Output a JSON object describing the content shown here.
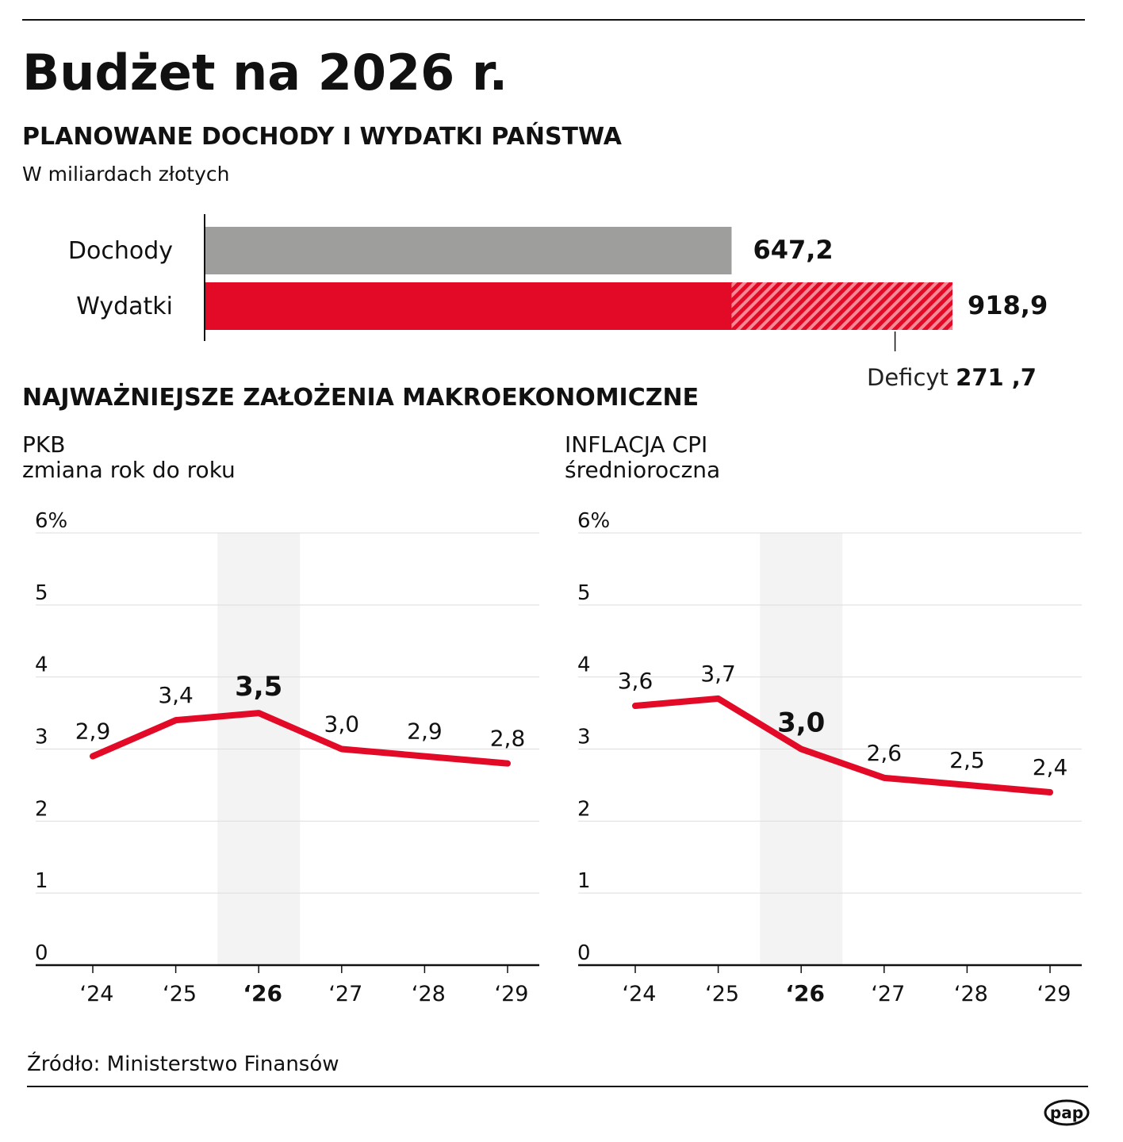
{
  "title": "Budżet na 2026 r.",
  "budget": {
    "heading": "PLANOWANE DOCHODY I WYDATKI PAŃSTWA",
    "unit": "W miliardach złotych",
    "deficit_label": "Deficyt",
    "deficit_value": "271 ,7"
  },
  "macro_heading": "NAJWAŻNIEJSZE ZAŁOŻENIA MAKROEKONOMICZNE",
  "source": "Źródło: Ministerstwo Finansów",
  "logo": "pap",
  "colors": {
    "red": "#e30a27",
    "gray": "#9e9e9d",
    "highlight": "#f3f3f3"
  },
  "chart_data": [
    {
      "type": "bar",
      "orientation": "horizontal",
      "categories": [
        "Dochody",
        "Wydatki"
      ],
      "values": [
        647.2,
        918.9
      ],
      "labels": [
        "647,2",
        "918,9"
      ],
      "deficit": 271.7
    },
    {
      "type": "line",
      "title": "PKB",
      "subtitle": "zmiana rok do roku",
      "categories": [
        "‘24",
        "‘25",
        "‘26",
        "‘27",
        "‘28",
        "‘29"
      ],
      "values": [
        2.9,
        3.4,
        3.5,
        3.0,
        2.9,
        2.8
      ],
      "labels": [
        "2,9",
        "3,4",
        "3,5",
        "3,0",
        "2,9",
        "2,8"
      ],
      "highlight": "‘26",
      "ylim": [
        0,
        6
      ],
      "yticks": [
        "0",
        "1",
        "2",
        "3",
        "4",
        "5",
        "6%"
      ],
      "grid": true
    },
    {
      "type": "line",
      "title": "INFLACJA CPI",
      "subtitle": "średnioroczna",
      "categories": [
        "‘24",
        "‘25",
        "‘26",
        "‘27",
        "‘28",
        "‘29"
      ],
      "values": [
        3.6,
        3.7,
        3.0,
        2.6,
        2.5,
        2.4
      ],
      "labels": [
        "3,6",
        "3,7",
        "3,0",
        "2,6",
        "2,5",
        "2,4"
      ],
      "highlight": "‘26",
      "ylim": [
        0,
        6
      ],
      "yticks": [
        "0",
        "1",
        "2",
        "3",
        "4",
        "5",
        "6%"
      ],
      "grid": true
    }
  ]
}
